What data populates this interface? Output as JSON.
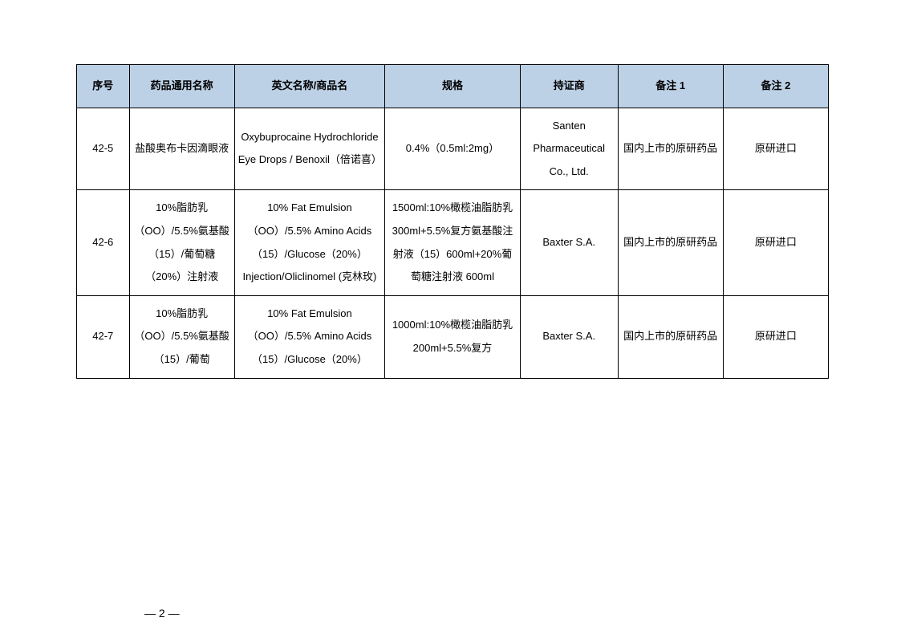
{
  "table": {
    "header_bg": "#bdd1e6",
    "border_color": "#000000",
    "columns": [
      {
        "label": "序号",
        "width": "7%"
      },
      {
        "label": "药品通用名称",
        "width": "14%"
      },
      {
        "label": "英文名称/商品名",
        "width": "20%"
      },
      {
        "label": "规格",
        "width": "18%"
      },
      {
        "label": "持证商",
        "width": "13%"
      },
      {
        "label": "备注 1",
        "width": "14%"
      },
      {
        "label": "备注 2",
        "width": "14%"
      }
    ],
    "rows": [
      {
        "seq": "42-5",
        "generic_name": "盐酸奥布卡因滴眼液",
        "english_name": "Oxybuprocaine Hydrochloride Eye Drops / Benoxil（倍诺喜）",
        "spec": "0.4%（0.5ml:2mg）",
        "holder": "Santen Pharmaceutical Co., Ltd.",
        "remark1": "国内上市的原研药品",
        "remark2": "原研进口"
      },
      {
        "seq": "42-6",
        "generic_name": "10%脂肪乳（OO）/5.5%氨基酸（15）/葡萄糖（20%）注射液",
        "english_name": "10% Fat Emulsion（OO）/5.5% Amino Acids（15）/Glucose（20%）Injection/Oliclinomel (克林玫)",
        "spec": "1500ml:10%橄榄油脂肪乳 300ml+5.5%复方氨基酸注射液（15）600ml+20%葡萄糖注射液 600ml",
        "holder": "Baxter S.A.",
        "remark1": "国内上市的原研药品",
        "remark2": "原研进口"
      },
      {
        "seq": "42-7",
        "generic_name": "10%脂肪乳（OO）/5.5%氨基酸（15）/葡萄",
        "english_name": "10% Fat Emulsion（OO）/5.5% Amino Acids（15）/Glucose（20%）",
        "spec": "1000ml:10%橄榄油脂肪乳 200ml+5.5%复方",
        "holder": "Baxter S.A.",
        "remark1": "国内上市的原研药品",
        "remark2": "原研进口"
      }
    ]
  },
  "page_number": "— 2 —"
}
